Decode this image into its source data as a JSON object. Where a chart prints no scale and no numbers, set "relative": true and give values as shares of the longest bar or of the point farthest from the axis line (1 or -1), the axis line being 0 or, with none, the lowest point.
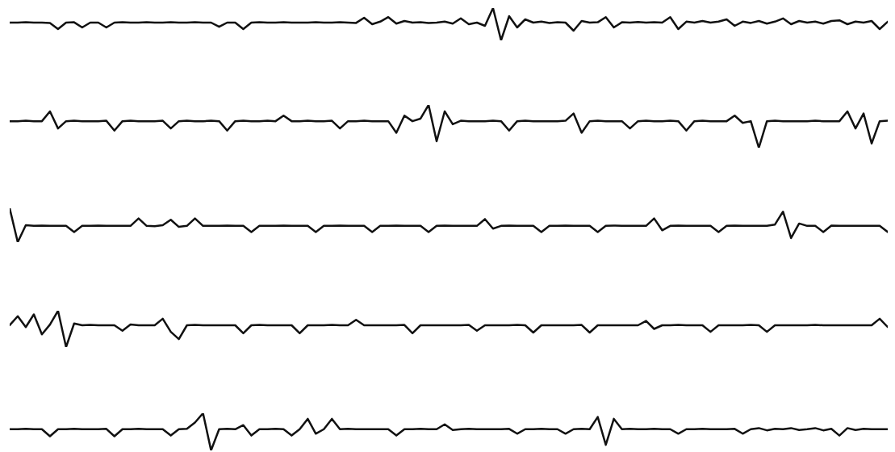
{
  "chart_data": [
    {
      "type": "line",
      "relative": true,
      "categories": [
        null,
        null,
        null,
        null,
        null,
        null,
        null,
        null,
        null,
        null,
        null,
        null,
        null,
        null,
        null,
        null,
        null,
        null,
        null,
        null,
        null,
        null,
        null,
        null,
        null,
        null,
        null,
        null,
        null,
        null,
        null,
        null,
        null,
        null,
        null,
        null,
        null,
        null,
        null,
        null,
        null,
        null,
        null,
        null,
        null,
        null,
        null,
        null,
        null,
        null,
        null,
        null,
        null,
        null,
        null,
        null,
        null,
        null,
        null,
        null,
        null,
        null,
        null,
        null,
        null,
        null,
        null,
        null,
        null,
        null,
        null,
        null,
        null,
        null,
        null,
        null,
        null,
        null,
        null,
        null,
        null,
        null,
        null,
        null,
        null,
        null,
        null,
        null,
        null,
        null,
        null,
        null,
        null,
        null,
        null,
        null,
        null,
        null,
        null,
        null,
        null,
        null,
        null,
        null,
        null,
        null,
        null,
        null,
        null,
        null
      ],
      "series": [
        {
          "color": "#111111",
          "values": [
            0.55,
            0.55,
            0.56,
            0.55,
            0.55,
            0.54,
            0.35,
            0.55,
            0.56,
            0.4,
            0.55,
            0.55,
            0.4,
            0.55,
            0.56,
            0.55,
            0.55,
            0.56,
            0.55,
            0.55,
            0.56,
            0.55,
            0.55,
            0.56,
            0.55,
            0.55,
            0.42,
            0.55,
            0.55,
            0.35,
            0.55,
            0.56,
            0.55,
            0.55,
            0.56,
            0.55,
            0.55,
            0.55,
            0.56,
            0.55,
            0.55,
            0.56,
            0.55,
            0.54,
            0.7,
            0.5,
            0.58,
            0.72,
            0.52,
            0.6,
            0.55,
            0.56,
            0.54,
            0.55,
            0.58,
            0.52,
            0.68,
            0.5,
            0.55,
            0.45,
            1.0,
            0.0,
            0.75,
            0.4,
            0.65,
            0.55,
            0.58,
            0.54,
            0.56,
            0.55,
            0.3,
            0.6,
            0.55,
            0.56,
            0.72,
            0.4,
            0.56,
            0.55,
            0.57,
            0.55,
            0.56,
            0.55,
            0.72,
            0.35,
            0.58,
            0.55,
            0.6,
            0.55,
            0.58,
            0.65,
            0.45,
            0.58,
            0.54,
            0.6,
            0.52,
            0.58,
            0.68,
            0.5,
            0.6,
            0.55,
            0.58,
            0.52,
            0.6,
            0.62,
            0.5,
            0.58,
            0.55,
            0.6,
            0.35,
            0.58
          ]
        }
      ]
    },
    {
      "type": "line",
      "relative": true,
      "categories": [
        null,
        null,
        null,
        null,
        null,
        null,
        null,
        null,
        null,
        null,
        null,
        null,
        null,
        null,
        null,
        null,
        null,
        null,
        null,
        null,
        null,
        null,
        null,
        null,
        null,
        null,
        null,
        null,
        null,
        null,
        null,
        null,
        null,
        null,
        null,
        null,
        null,
        null,
        null,
        null,
        null,
        null,
        null,
        null,
        null,
        null,
        null,
        null,
        null,
        null,
        null,
        null,
        null,
        null,
        null,
        null,
        null,
        null,
        null,
        null,
        null,
        null,
        null,
        null,
        null,
        null,
        null,
        null,
        null,
        null,
        null,
        null,
        null,
        null,
        null,
        null,
        null,
        null,
        null,
        null,
        null,
        null,
        null,
        null,
        null,
        null,
        null,
        null,
        null,
        null,
        null,
        null,
        null,
        null,
        null,
        null,
        null,
        null,
        null,
        null,
        null,
        null,
        null,
        null,
        null,
        null,
        null,
        null,
        null,
        null
      ],
      "series": [
        {
          "color": "#111111",
          "values": [
            0.62,
            0.62,
            0.63,
            0.62,
            0.62,
            0.85,
            0.45,
            0.62,
            0.63,
            0.62,
            0.62,
            0.62,
            0.63,
            0.4,
            0.62,
            0.63,
            0.62,
            0.62,
            0.62,
            0.63,
            0.45,
            0.62,
            0.63,
            0.62,
            0.62,
            0.63,
            0.62,
            0.4,
            0.62,
            0.63,
            0.62,
            0.62,
            0.63,
            0.62,
            0.75,
            0.62,
            0.62,
            0.63,
            0.62,
            0.62,
            0.63,
            0.45,
            0.62,
            0.62,
            0.63,
            0.62,
            0.62,
            0.62,
            0.35,
            0.75,
            0.62,
            0.68,
            1.0,
            0.15,
            0.85,
            0.55,
            0.63,
            0.62,
            0.62,
            0.62,
            0.63,
            0.62,
            0.4,
            0.62,
            0.63,
            0.62,
            0.62,
            0.62,
            0.62,
            0.63,
            0.8,
            0.35,
            0.62,
            0.63,
            0.62,
            0.62,
            0.62,
            0.45,
            0.62,
            0.63,
            0.62,
            0.62,
            0.63,
            0.62,
            0.4,
            0.62,
            0.63,
            0.62,
            0.62,
            0.62,
            0.75,
            0.58,
            0.62,
            0.0,
            0.62,
            0.63,
            0.62,
            0.62,
            0.62,
            0.62,
            0.63,
            0.62,
            0.62,
            0.62,
            0.85,
            0.45,
            0.8,
            0.1,
            0.62,
            0.63
          ]
        }
      ]
    },
    {
      "type": "line",
      "relative": true,
      "categories": [
        null,
        null,
        null,
        null,
        null,
        null,
        null,
        null,
        null,
        null,
        null,
        null,
        null,
        null,
        null,
        null,
        null,
        null,
        null,
        null,
        null,
        null,
        null,
        null,
        null,
        null,
        null,
        null,
        null,
        null,
        null,
        null,
        null,
        null,
        null,
        null,
        null,
        null,
        null,
        null,
        null,
        null,
        null,
        null,
        null,
        null,
        null,
        null,
        null,
        null,
        null,
        null,
        null,
        null,
        null,
        null,
        null,
        null,
        null,
        null,
        null,
        null,
        null,
        null,
        null,
        null,
        null,
        null,
        null,
        null,
        null,
        null,
        null,
        null,
        null,
        null,
        null,
        null,
        null,
        null,
        null,
        null,
        null,
        null,
        null,
        null,
        null,
        null,
        null,
        null,
        null,
        null,
        null,
        null,
        null,
        null,
        null,
        null,
        null,
        null,
        null,
        null,
        null,
        null,
        null,
        null,
        null,
        null,
        null,
        null
      ],
      "series": [
        {
          "color": "#111111",
          "values": [
            1.0,
            0.0,
            0.5,
            0.48,
            0.49,
            0.48,
            0.48,
            0.48,
            0.3,
            0.48,
            0.48,
            0.49,
            0.48,
            0.48,
            0.48,
            0.48,
            0.7,
            0.48,
            0.47,
            0.5,
            0.66,
            0.45,
            0.48,
            0.7,
            0.48,
            0.48,
            0.48,
            0.49,
            0.48,
            0.48,
            0.3,
            0.48,
            0.48,
            0.48,
            0.49,
            0.48,
            0.48,
            0.48,
            0.3,
            0.48,
            0.48,
            0.49,
            0.48,
            0.48,
            0.48,
            0.3,
            0.48,
            0.48,
            0.49,
            0.48,
            0.48,
            0.48,
            0.3,
            0.48,
            0.49,
            0.48,
            0.48,
            0.48,
            0.48,
            0.68,
            0.4,
            0.48,
            0.49,
            0.48,
            0.48,
            0.48,
            0.3,
            0.48,
            0.48,
            0.49,
            0.48,
            0.48,
            0.48,
            0.3,
            0.48,
            0.49,
            0.48,
            0.48,
            0.48,
            0.48,
            0.7,
            0.35,
            0.48,
            0.49,
            0.48,
            0.48,
            0.48,
            0.48,
            0.3,
            0.48,
            0.49,
            0.48,
            0.48,
            0.48,
            0.48,
            0.52,
            0.9,
            0.12,
            0.55,
            0.48,
            0.48,
            0.3,
            0.49,
            0.48,
            0.48,
            0.48,
            0.48,
            0.48,
            0.48,
            0.3
          ]
        }
      ]
    },
    {
      "type": "line",
      "relative": true,
      "categories": [
        null,
        null,
        null,
        null,
        null,
        null,
        null,
        null,
        null,
        null,
        null,
        null,
        null,
        null,
        null,
        null,
        null,
        null,
        null,
        null,
        null,
        null,
        null,
        null,
        null,
        null,
        null,
        null,
        null,
        null,
        null,
        null,
        null,
        null,
        null,
        null,
        null,
        null,
        null,
        null,
        null,
        null,
        null,
        null,
        null,
        null,
        null,
        null,
        null,
        null,
        null,
        null,
        null,
        null,
        null,
        null,
        null,
        null,
        null,
        null,
        null,
        null,
        null,
        null,
        null,
        null,
        null,
        null,
        null,
        null,
        null,
        null,
        null,
        null,
        null,
        null,
        null,
        null,
        null,
        null,
        null,
        null,
        null,
        null,
        null,
        null,
        null,
        null,
        null,
        null,
        null,
        null,
        null,
        null,
        null,
        null,
        null,
        null,
        null,
        null,
        null,
        null,
        null,
        null,
        null,
        null,
        null,
        null,
        null,
        null
      ],
      "series": [
        {
          "color": "#111111",
          "values": [
            0.6,
            0.85,
            0.55,
            0.9,
            0.35,
            0.62,
            1.0,
            0.0,
            0.65,
            0.6,
            0.61,
            0.6,
            0.6,
            0.6,
            0.45,
            0.62,
            0.6,
            0.6,
            0.6,
            0.78,
            0.42,
            0.22,
            0.6,
            0.61,
            0.6,
            0.6,
            0.6,
            0.6,
            0.6,
            0.38,
            0.6,
            0.61,
            0.6,
            0.6,
            0.6,
            0.6,
            0.38,
            0.6,
            0.6,
            0.6,
            0.61,
            0.6,
            0.6,
            0.75,
            0.6,
            0.6,
            0.6,
            0.6,
            0.6,
            0.61,
            0.38,
            0.6,
            0.6,
            0.6,
            0.6,
            0.6,
            0.6,
            0.61,
            0.45,
            0.6,
            0.6,
            0.6,
            0.6,
            0.61,
            0.6,
            0.4,
            0.6,
            0.6,
            0.6,
            0.6,
            0.6,
            0.61,
            0.4,
            0.6,
            0.6,
            0.6,
            0.6,
            0.6,
            0.6,
            0.72,
            0.5,
            0.6,
            0.6,
            0.61,
            0.6,
            0.6,
            0.6,
            0.42,
            0.6,
            0.6,
            0.6,
            0.6,
            0.61,
            0.6,
            0.42,
            0.6,
            0.6,
            0.6,
            0.6,
            0.6,
            0.61,
            0.6,
            0.6,
            0.6,
            0.6,
            0.6,
            0.6,
            0.6,
            0.78,
            0.55
          ]
        }
      ]
    },
    {
      "type": "line",
      "relative": true,
      "categories": [
        null,
        null,
        null,
        null,
        null,
        null,
        null,
        null,
        null,
        null,
        null,
        null,
        null,
        null,
        null,
        null,
        null,
        null,
        null,
        null,
        null,
        null,
        null,
        null,
        null,
        null,
        null,
        null,
        null,
        null,
        null,
        null,
        null,
        null,
        null,
        null,
        null,
        null,
        null,
        null,
        null,
        null,
        null,
        null,
        null,
        null,
        null,
        null,
        null,
        null,
        null,
        null,
        null,
        null,
        null,
        null,
        null,
        null,
        null,
        null,
        null,
        null,
        null,
        null,
        null,
        null,
        null,
        null,
        null,
        null,
        null,
        null,
        null,
        null,
        null,
        null,
        null,
        null,
        null,
        null,
        null,
        null,
        null,
        null,
        null,
        null,
        null,
        null,
        null,
        null,
        null,
        null,
        null,
        null,
        null,
        null,
        null,
        null,
        null,
        null,
        null,
        null,
        null,
        null,
        null,
        null,
        null,
        null,
        null,
        null
      ],
      "series": [
        {
          "color": "#111111",
          "values": [
            0.57,
            0.57,
            0.58,
            0.57,
            0.57,
            0.38,
            0.57,
            0.57,
            0.58,
            0.57,
            0.57,
            0.57,
            0.58,
            0.38,
            0.57,
            0.57,
            0.58,
            0.57,
            0.57,
            0.57,
            0.4,
            0.57,
            0.58,
            0.75,
            1.0,
            0.0,
            0.57,
            0.58,
            0.57,
            0.68,
            0.4,
            0.57,
            0.57,
            0.58,
            0.57,
            0.4,
            0.57,
            0.85,
            0.45,
            0.57,
            0.85,
            0.57,
            0.58,
            0.57,
            0.57,
            0.57,
            0.57,
            0.57,
            0.4,
            0.57,
            0.57,
            0.58,
            0.57,
            0.57,
            0.7,
            0.55,
            0.57,
            0.58,
            0.57,
            0.57,
            0.57,
            0.57,
            0.58,
            0.45,
            0.57,
            0.57,
            0.58,
            0.57,
            0.57,
            0.45,
            0.57,
            0.58,
            0.57,
            0.9,
            0.15,
            0.85,
            0.57,
            0.58,
            0.57,
            0.57,
            0.58,
            0.57,
            0.57,
            0.45,
            0.57,
            0.57,
            0.58,
            0.57,
            0.57,
            0.57,
            0.58,
            0.45,
            0.57,
            0.6,
            0.54,
            0.58,
            0.57,
            0.6,
            0.55,
            0.57,
            0.6,
            0.54,
            0.58,
            0.4,
            0.6,
            0.55,
            0.58,
            0.57,
            0.57,
            0.57
          ]
        }
      ]
    }
  ]
}
